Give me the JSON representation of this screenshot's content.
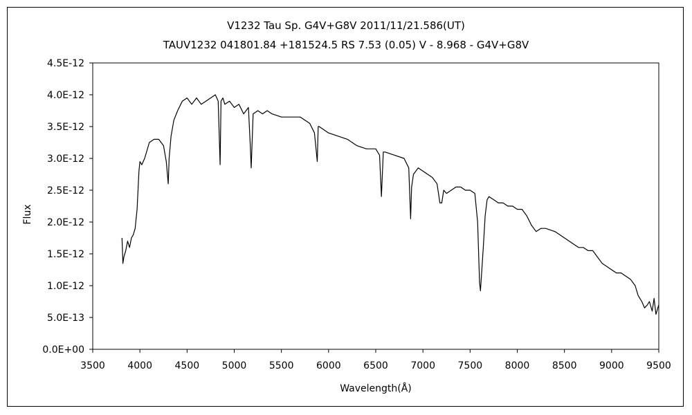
{
  "chart_data": {
    "type": "line",
    "title": "V1232 Tau    Sp. G4V+G8V    2011/11/21.586(UT)",
    "subtitle": "TAUV1232 041801.84 +181524.5 RS 7.53 (0.05) V - 8.968 - G4V+G8V",
    "xlabel": "Wavelength(Å)",
    "ylabel": "Flux",
    "xlim": [
      3500,
      9500
    ],
    "ylim": [
      0,
      4.5e-12
    ],
    "grid": false,
    "legend": "none",
    "x_ticks": [
      "3500",
      "4000",
      "4500",
      "5000",
      "5500",
      "6000",
      "6500",
      "7000",
      "7500",
      "8000",
      "8500",
      "9000",
      "9500"
    ],
    "y_ticks": [
      "0.0E+00",
      "5.0E-13",
      "1.0E-12",
      "1.5E-12",
      "2.0E-12",
      "2.5E-12",
      "3.0E-12",
      "3.5E-12",
      "4.0E-12",
      "4.5E-12"
    ],
    "series": [
      {
        "color": "#000000",
        "x": [
          3810,
          3820,
          3830,
          3850,
          3870,
          3890,
          3910,
          3930,
          3950,
          3970,
          3990,
          4000,
          4020,
          4050,
          4080,
          4100,
          4150,
          4200,
          4250,
          4280,
          4300,
          4310,
          4330,
          4360,
          4400,
          4450,
          4500,
          4550,
          4600,
          4650,
          4700,
          4750,
          4800,
          4830,
          4850,
          4860,
          4880,
          4900,
          4950,
          5000,
          5050,
          5100,
          5150,
          5170,
          5180,
          5200,
          5250,
          5300,
          5350,
          5400,
          5500,
          5600,
          5700,
          5800,
          5850,
          5880,
          5890,
          5900,
          5950,
          6000,
          6100,
          6200,
          6300,
          6400,
          6500,
          6540,
          6560,
          6580,
          6600,
          6700,
          6800,
          6850,
          6870,
          6880,
          6900,
          6950,
          7000,
          7050,
          7100,
          7150,
          7180,
          7200,
          7220,
          7250,
          7300,
          7350,
          7400,
          7450,
          7500,
          7550,
          7580,
          7600,
          7610,
          7620,
          7640,
          7660,
          7680,
          7700,
          7750,
          7800,
          7850,
          7900,
          7950,
          8000,
          8050,
          8100,
          8150,
          8200,
          8250,
          8300,
          8400,
          8500,
          8550,
          8600,
          8650,
          8700,
          8750,
          8800,
          8850,
          8900,
          8950,
          9000,
          9050,
          9100,
          9150,
          9200,
          9250,
          9280,
          9300,
          9320,
          9350,
          9380,
          9400,
          9430,
          9450,
          9470,
          9500
        ],
        "y": [
          1.75e-12,
          1.35e-12,
          1.45e-12,
          1.55e-12,
          1.7e-12,
          1.6e-12,
          1.75e-12,
          1.8e-12,
          1.9e-12,
          2.2e-12,
          2.8e-12,
          2.95e-12,
          2.9e-12,
          3e-12,
          3.15e-12,
          3.25e-12,
          3.3e-12,
          3.3e-12,
          3.2e-12,
          2.95e-12,
          2.6e-12,
          3e-12,
          3.35e-12,
          3.6e-12,
          3.75e-12,
          3.9e-12,
          3.95e-12,
          3.85e-12,
          3.95e-12,
          3.85e-12,
          3.9e-12,
          3.95e-12,
          4e-12,
          3.9e-12,
          2.9e-12,
          3.9e-12,
          3.95e-12,
          3.85e-12,
          3.9e-12,
          3.8e-12,
          3.85e-12,
          3.7e-12,
          3.8e-12,
          3.2e-12,
          2.85e-12,
          3.7e-12,
          3.75e-12,
          3.7e-12,
          3.75e-12,
          3.7e-12,
          3.65e-12,
          3.65e-12,
          3.65e-12,
          3.55e-12,
          3.4e-12,
          2.95e-12,
          3.5e-12,
          3.5e-12,
          3.45e-12,
          3.4e-12,
          3.35e-12,
          3.3e-12,
          3.2e-12,
          3.15e-12,
          3.15e-12,
          3.05e-12,
          2.4e-12,
          3.1e-12,
          3.1e-12,
          3.05e-12,
          3e-12,
          2.85e-12,
          2.05e-12,
          2.55e-12,
          2.75e-12,
          2.85e-12,
          2.8e-12,
          2.75e-12,
          2.7e-12,
          2.6e-12,
          2.3e-12,
          2.3e-12,
          2.5e-12,
          2.45e-12,
          2.5e-12,
          2.55e-12,
          2.55e-12,
          2.5e-12,
          2.5e-12,
          2.45e-12,
          2e-12,
          1.05e-12,
          9.2e-13,
          1.15e-12,
          1.6e-12,
          2.1e-12,
          2.35e-12,
          2.4e-12,
          2.35e-12,
          2.3e-12,
          2.3e-12,
          2.25e-12,
          2.25e-12,
          2.2e-12,
          2.2e-12,
          2.1e-12,
          1.95e-12,
          1.85e-12,
          1.9e-12,
          1.9e-12,
          1.85e-12,
          1.75e-12,
          1.7e-12,
          1.65e-12,
          1.6e-12,
          1.6e-12,
          1.55e-12,
          1.55e-12,
          1.45e-12,
          1.35e-12,
          1.3e-12,
          1.25e-12,
          1.2e-12,
          1.2e-12,
          1.15e-12,
          1.1e-12,
          1e-12,
          8.5e-13,
          8e-13,
          7.5e-13,
          6.5e-13,
          7e-13,
          7.5e-13,
          6e-13,
          8e-13,
          5.5e-13,
          7e-13
        ]
      }
    ]
  }
}
